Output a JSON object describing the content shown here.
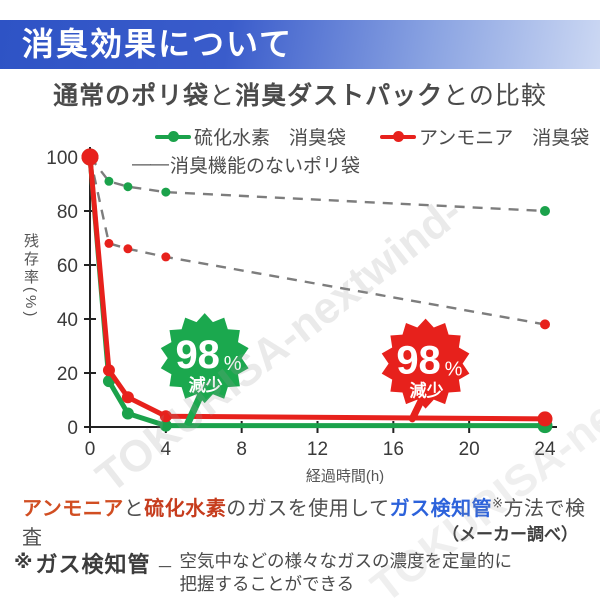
{
  "header": {
    "title": "消臭効果について"
  },
  "subtitle_segments": [
    {
      "text": "通常のポリ袋",
      "bold": true
    },
    {
      "text": "と",
      "bold": false
    },
    {
      "text": "消臭ダストパック",
      "bold": true
    },
    {
      "text": "との比較",
      "bold": false
    }
  ],
  "legend": {
    "items": [
      {
        "label": "硫化水素　消臭袋",
        "color": "#1ba24b"
      },
      {
        "label": "アンモニア　消臭袋",
        "color": "#e7211c"
      }
    ],
    "dashed": {
      "sample": "――",
      "label": "消臭機能のないポリ袋"
    }
  },
  "chart_data": {
    "type": "line",
    "xlabel": "経過時間(h)",
    "ylabel": "残存率(%)",
    "xlim": [
      0,
      24
    ],
    "ylim": [
      0,
      100
    ],
    "x_ticks": [
      0,
      4,
      8,
      12,
      16,
      20,
      24
    ],
    "y_ticks": [
      0,
      20,
      40,
      60,
      80,
      100
    ],
    "x": [
      0,
      1,
      2,
      4,
      24
    ],
    "series": [
      {
        "name": "硫化水素 消臭機能のないポリ袋",
        "style": "dashed",
        "line_color": "#7d7d7d",
        "marker_color": "#1ba24b",
        "values": [
          100,
          91,
          89,
          87,
          80
        ]
      },
      {
        "name": "アンモニア 消臭機能のないポリ袋",
        "style": "dashed",
        "line_color": "#7d7d7d",
        "marker_color": "#e7211c",
        "values": [
          100,
          68,
          66,
          63,
          38
        ]
      },
      {
        "name": "硫化水素 消臭袋",
        "style": "solid",
        "line_color": "#1ba24b",
        "marker_color": "#1ba24b",
        "values": [
          100,
          17,
          5,
          0.5,
          0.5
        ]
      },
      {
        "name": "アンモニア 消臭袋",
        "style": "solid",
        "line_color": "#e7211c",
        "marker_color": "#e7211c",
        "values": [
          100,
          21,
          11,
          4,
          3
        ]
      }
    ],
    "start_dot": {
      "x": 0,
      "y": 100,
      "color": "#e7211c"
    },
    "annotations": [
      {
        "value": "98",
        "unit": "%",
        "label": "減少",
        "color": "#1ba84e",
        "cx": 6.05,
        "cy": 25.5,
        "tip_x": 5.15,
        "tip_y": 1.2
      },
      {
        "value": "98",
        "unit": "%",
        "label": "減少",
        "color": "#e7211c",
        "cx": 17.7,
        "cy": 23.5,
        "tip_x": 17.0,
        "tip_y": 3
      }
    ]
  },
  "caption": {
    "segments": [
      {
        "text": "アンモニア",
        "color": "#d14e22",
        "bold": true
      },
      {
        "text": "と",
        "bold": false
      },
      {
        "text": "硫化水素",
        "color": "#c63c1d",
        "bold": true
      },
      {
        "text": "のガスを使用して",
        "bold": false
      },
      {
        "text": "ガス検知管",
        "color": "#2c62db",
        "bold": true
      },
      {
        "text": "※",
        "sup": true
      },
      {
        "text": "方法で検査",
        "bold": false
      }
    ],
    "source": "（メーカー調べ）"
  },
  "footnote": {
    "marker": "※",
    "term": "ガス検知管",
    "dash": "－",
    "body": "空気中などの様々なガスの濃度を定量的に把握することができる"
  },
  "watermark": "TOKURISA-nextwind-"
}
